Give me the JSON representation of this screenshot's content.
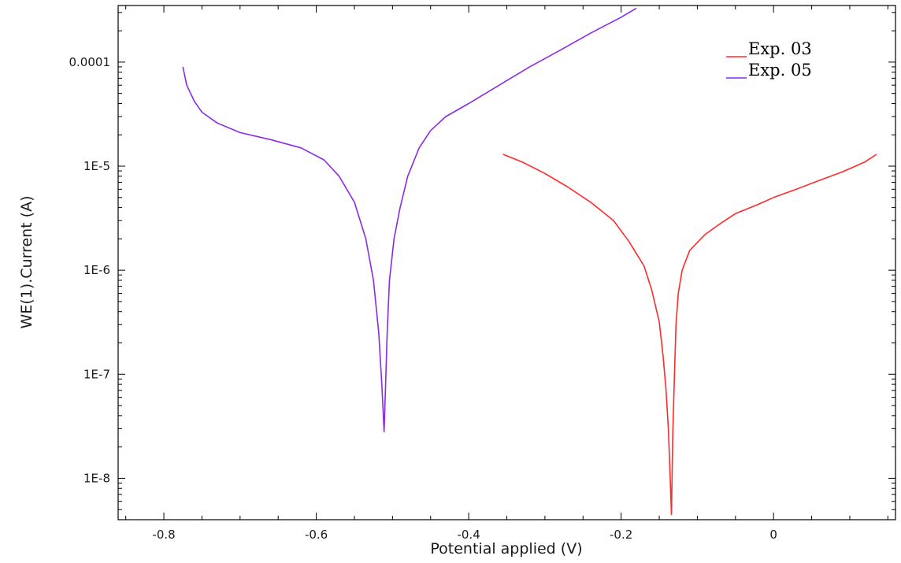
{
  "chart_data": {
    "type": "line",
    "xlabel": "Potential applied (V)",
    "ylabel": "WE(1).Current (A)",
    "xlim": [
      -0.86,
      0.16
    ],
    "ylim": [
      4e-09,
      0.00035
    ],
    "y_scale": "log",
    "x_ticks": [
      -0.8,
      -0.6,
      -0.4,
      -0.2,
      0
    ],
    "x_tick_labels": [
      "-0.8",
      "-0.6",
      "-0.4",
      "-0.2",
      "0"
    ],
    "y_ticks": [
      1e-08,
      1e-07,
      1e-06,
      1e-05,
      0.0001
    ],
    "y_tick_labels": [
      "1E-8",
      "1E-7",
      "1E-6",
      "1E-5",
      "0.0001"
    ],
    "grid": false,
    "legend_position": "top-right",
    "series": [
      {
        "name": "Exp. 03",
        "color": "#ff2a2a",
        "x": [
          -0.355,
          -0.33,
          -0.3,
          -0.27,
          -0.24,
          -0.21,
          -0.19,
          -0.17,
          -0.16,
          -0.15,
          -0.145,
          -0.141,
          -0.138,
          -0.136,
          -0.134,
          -0.132,
          -0.13,
          -0.128,
          -0.125,
          -0.12,
          -0.11,
          -0.09,
          -0.07,
          -0.05,
          -0.02,
          0.0,
          0.03,
          0.06,
          0.09,
          0.12,
          0.135
        ],
        "y": [
          1.3e-05,
          1.1e-05,
          8.5e-06,
          6.3e-06,
          4.5e-06,
          3e-06,
          1.9e-06,
          1.1e-06,
          6.5e-07,
          3.2e-07,
          1.5e-07,
          7e-08,
          3e-08,
          1.2e-08,
          4.5e-09,
          3e-08,
          1e-07,
          3e-07,
          6e-07,
          1e-06,
          1.55e-06,
          2.2e-06,
          2.8e-06,
          3.5e-06,
          4.3e-06,
          5e-06,
          6e-06,
          7.3e-06,
          8.8e-06,
          1.1e-05,
          1.3e-05
        ]
      },
      {
        "name": "Exp. 05",
        "color": "#8a2be2",
        "x": [
          -0.775,
          -0.77,
          -0.76,
          -0.75,
          -0.73,
          -0.7,
          -0.66,
          -0.62,
          -0.59,
          -0.57,
          -0.55,
          -0.535,
          -0.525,
          -0.518,
          -0.514,
          -0.511,
          -0.509,
          -0.507,
          -0.504,
          -0.498,
          -0.49,
          -0.48,
          -0.465,
          -0.45,
          -0.43,
          -0.4,
          -0.36,
          -0.32,
          -0.28,
          -0.24,
          -0.2,
          -0.18
        ],
        "y": [
          9e-05,
          6e-05,
          4.2e-05,
          3.3e-05,
          2.6e-05,
          2.1e-05,
          1.8e-05,
          1.5e-05,
          1.15e-05,
          8e-06,
          4.5e-06,
          2e-06,
          8e-07,
          2.5e-07,
          8e-08,
          2.8e-08,
          8e-08,
          2.5e-07,
          8e-07,
          2e-06,
          4e-06,
          8e-06,
          1.5e-05,
          2.2e-05,
          3e-05,
          4e-05,
          6e-05,
          9e-05,
          0.00013,
          0.00019,
          0.00027,
          0.00033
        ]
      }
    ]
  }
}
